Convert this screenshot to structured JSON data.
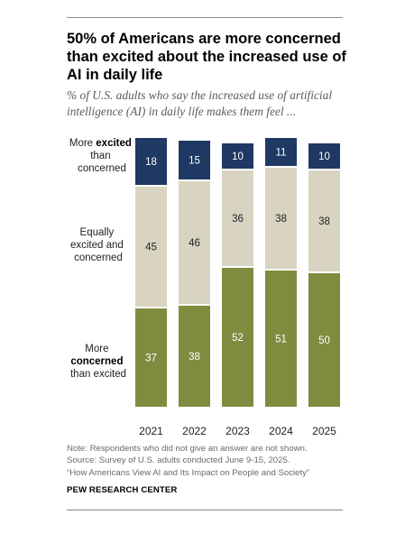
{
  "header": {
    "title": "50% of Americans are more concerned than excited about the increased use of AI in daily life",
    "subtitle": "% of U.S. adults who say the increased use of artificial intelligence (AI) in daily life makes them feel ..."
  },
  "colors": {
    "excited": "#1f3864",
    "equally": "#d9d4c1",
    "concerned": "#7f8c3f",
    "rule": "#8a8a8a"
  },
  "row_labels": {
    "excited": {
      "line1_pre": "More ",
      "line1_bold": "excited",
      "line2": "than",
      "line3": "concerned"
    },
    "equally": {
      "line1": "Equally",
      "line2": "excited and",
      "line3": "concerned"
    },
    "concerned": {
      "line1": "More",
      "line2_bold": "concerned",
      "line3": "than excited"
    }
  },
  "chart_data": {
    "type": "bar",
    "stacked": true,
    "categories": [
      "2021",
      "2022",
      "2023",
      "2024",
      "2025"
    ],
    "series": [
      {
        "name": "More concerned than excited",
        "key": "concerned",
        "values": [
          37,
          38,
          52,
          51,
          50
        ]
      },
      {
        "name": "Equally excited and concerned",
        "key": "equally",
        "values": [
          45,
          46,
          36,
          38,
          38
        ]
      },
      {
        "name": "More excited than concerned",
        "key": "excited",
        "values": [
          18,
          15,
          10,
          11,
          10
        ]
      }
    ],
    "ylim": [
      0,
      100
    ],
    "grid": false,
    "legend": "left-side row labels"
  },
  "notes": {
    "note": "Note: Respondents who did not give an answer are not shown.",
    "source": "Source: Survey of U.S. adults conducted June 9-15, 2025.",
    "report": "“How Americans View AI and Its Impact on People and Society”",
    "org": "PEW RESEARCH CENTER"
  }
}
